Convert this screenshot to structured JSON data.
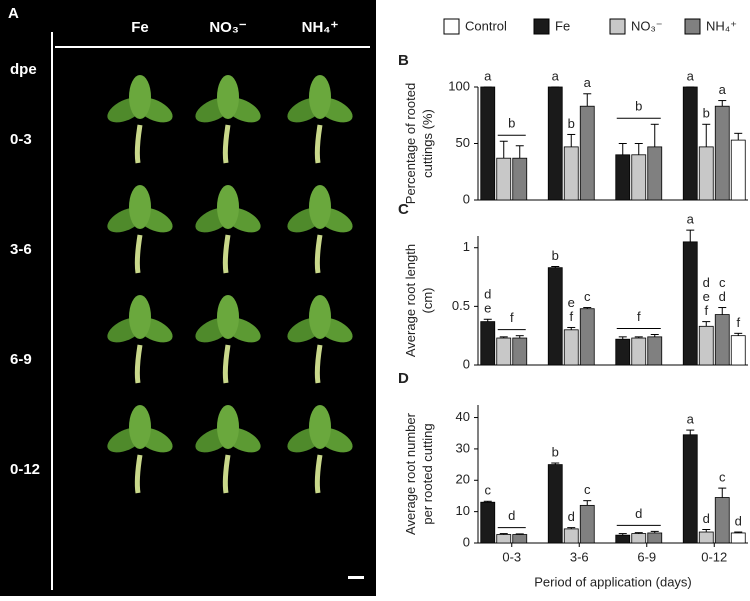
{
  "photo_panel": {
    "label": "A",
    "column_headers": [
      "Fe",
      "NO₃⁻",
      "NH₄⁺"
    ],
    "row_header": "dpe",
    "rows": [
      "0-3",
      "3-6",
      "6-9",
      "0-12"
    ]
  },
  "chart_data": [
    {
      "type": "bar",
      "title": "B",
      "y_label": [
        "Percentage of rooted",
        "cuttings (%)"
      ],
      "ylim": [
        0,
        100
      ],
      "yticks": [
        0,
        50,
        100
      ],
      "series": [
        {
          "name": "Fe",
          "color": "#1a1a1a",
          "values": [
            100,
            100,
            40,
            100
          ],
          "errors": [
            0,
            0,
            10,
            0
          ],
          "letters": [
            [
              "a"
            ],
            [
              "a"
            ],
            null,
            [
              "a"
            ]
          ]
        },
        {
          "name": "NO₃⁻",
          "color": "#c8c8c8",
          "values": [
            37,
            47,
            40,
            47
          ],
          "errors": [
            15,
            11,
            10,
            20
          ],
          "letters": [
            null,
            [
              "b"
            ],
            null,
            [
              "b"
            ]
          ]
        },
        {
          "name": "NH₄⁺",
          "color": "#808080",
          "values": [
            37,
            83,
            47,
            83
          ],
          "errors": [
            11,
            11,
            20,
            5
          ],
          "letters": [
            null,
            [
              "a"
            ],
            null,
            [
              "a"
            ]
          ]
        },
        {
          "name": "Control",
          "color": "#ffffff",
          "values": [
            null,
            null,
            null,
            53
          ],
          "errors": [
            null,
            null,
            null,
            6
          ],
          "letters": [
            null,
            null,
            null,
            null
          ]
        }
      ],
      "group_letters": [
        {
          "text": "b",
          "category": 0,
          "series": [
            1,
            2
          ]
        },
        {
          "text": "b",
          "category": 2,
          "series": [
            0,
            2
          ]
        }
      ]
    },
    {
      "type": "bar",
      "title": "C",
      "y_label": [
        "Average root length",
        "(cm)"
      ],
      "ylim": [
        0,
        1.1
      ],
      "yticks": [
        0,
        0.5,
        1
      ],
      "series": [
        {
          "color": "#1a1a1a",
          "values": [
            0.37,
            0.83,
            0.22,
            1.05
          ],
          "errors": [
            0.02,
            0.01,
            0.02,
            0.1
          ],
          "letters": [
            [
              "d",
              "e"
            ],
            [
              "b"
            ],
            null,
            [
              "a"
            ]
          ]
        },
        {
          "color": "#c8c8c8",
          "values": [
            0.23,
            0.3,
            0.23,
            0.33
          ],
          "errors": [
            0.01,
            0.02,
            0.01,
            0.04
          ],
          "letters": [
            null,
            [
              "e",
              "f"
            ],
            null,
            [
              "d",
              "e",
              "f"
            ]
          ]
        },
        {
          "color": "#808080",
          "values": [
            0.23,
            0.48,
            0.24,
            0.43
          ],
          "errors": [
            0.02,
            0.01,
            0.02,
            0.06
          ],
          "letters": [
            null,
            [
              "c"
            ],
            null,
            [
              "c",
              "d"
            ]
          ]
        },
        {
          "color": "#ffffff",
          "values": [
            null,
            null,
            null,
            0.25
          ],
          "errors": [
            null,
            null,
            null,
            0.02
          ],
          "letters": [
            null,
            null,
            null,
            [
              "f"
            ]
          ]
        }
      ],
      "group_letters": [
        {
          "text": "f",
          "category": 0,
          "series": [
            1,
            2
          ]
        },
        {
          "text": "f",
          "category": 2,
          "series": [
            0,
            2
          ]
        }
      ]
    },
    {
      "type": "bar",
      "title": "D",
      "y_label": [
        "Average root number",
        "per rooted cutting"
      ],
      "x_label": "Period of application (days)",
      "categories": [
        "0-3",
        "3-6",
        "6-9",
        "0-12"
      ],
      "ylim": [
        0,
        44
      ],
      "yticks": [
        0,
        10,
        20,
        30,
        40
      ],
      "series": [
        {
          "color": "#1a1a1a",
          "values": [
            13,
            25,
            2.5,
            34.5
          ],
          "errors": [
            0.3,
            0.5,
            0.5,
            1.5
          ],
          "letters": [
            [
              "c"
            ],
            [
              "b"
            ],
            null,
            [
              "a"
            ]
          ]
        },
        {
          "color": "#c8c8c8",
          "values": [
            2.7,
            4.5,
            3,
            3.5
          ],
          "errors": [
            0.3,
            0.4,
            0.3,
            0.8
          ],
          "letters": [
            null,
            [
              "d"
            ],
            null,
            [
              "d"
            ]
          ]
        },
        {
          "color": "#808080",
          "values": [
            2.7,
            12,
            3.2,
            14.5
          ],
          "errors": [
            0.2,
            1.5,
            0.5,
            3
          ],
          "letters": [
            null,
            [
              "c"
            ],
            null,
            [
              "c"
            ]
          ]
        },
        {
          "color": "#ffffff",
          "values": [
            null,
            null,
            null,
            3.2
          ],
          "errors": [
            null,
            null,
            null,
            0.3
          ],
          "letters": [
            null,
            null,
            null,
            [
              "d"
            ]
          ]
        }
      ],
      "group_letters": [
        {
          "text": "d",
          "category": 0,
          "series": [
            1,
            2
          ]
        },
        {
          "text": "d",
          "category": 2,
          "series": [
            0,
            2
          ]
        }
      ]
    }
  ]
}
